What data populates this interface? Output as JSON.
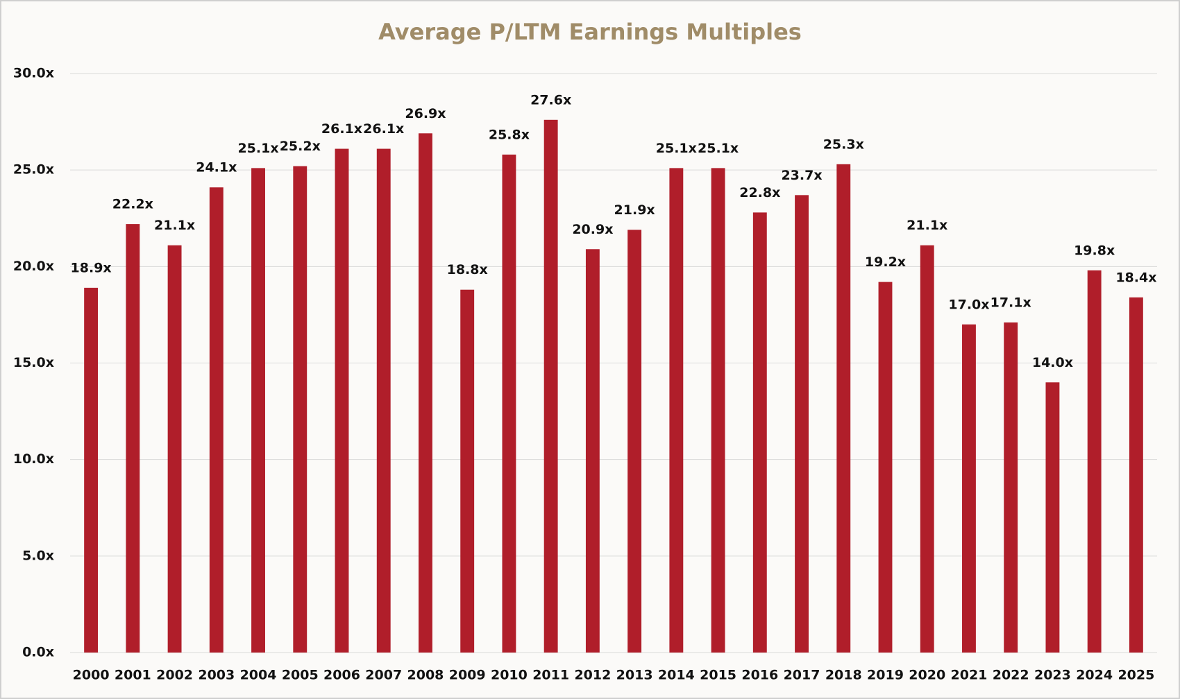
{
  "chart_data": {
    "type": "bar",
    "title": "Average P/LTM Earnings Multiples",
    "categories": [
      "2000",
      "2001",
      "2002",
      "2003",
      "2004",
      "2005",
      "2006",
      "2007",
      "2008",
      "2009",
      "2010",
      "2011",
      "2012",
      "2013",
      "2014",
      "2015",
      "2016",
      "2017",
      "2018",
      "2019",
      "2020",
      "2021",
      "2022",
      "2023",
      "2024",
      "2025"
    ],
    "values": [
      18.9,
      22.2,
      21.1,
      24.1,
      25.1,
      25.2,
      26.1,
      26.1,
      26.9,
      18.8,
      25.8,
      27.6,
      20.9,
      21.9,
      25.1,
      25.1,
      22.8,
      23.7,
      25.3,
      19.2,
      21.1,
      17.0,
      17.1,
      14.0,
      19.8,
      18.4
    ],
    "value_labels": [
      "18.9x",
      "22.2x",
      "21.1x",
      "24.1x",
      "25.1x",
      "25.2x",
      "26.1x",
      "26.1x",
      "26.9x",
      "18.8x",
      "25.8x",
      "27.6x",
      "20.9x",
      "21.9x",
      "25.1x",
      "25.1x",
      "22.8x",
      "23.7x",
      "25.3x",
      "19.2x",
      "21.1x",
      "17.0x",
      "17.1x",
      "14.0x",
      "19.8x",
      "18.4x"
    ],
    "color": "#b01e2a",
    "ylim": [
      0,
      30
    ],
    "yticks": [
      {
        "value": 0,
        "label": "0.0x"
      },
      {
        "value": 5,
        "label": "5.0x"
      },
      {
        "value": 10,
        "label": "10.0x"
      },
      {
        "value": 15,
        "label": "15.0x"
      },
      {
        "value": 20,
        "label": "20.0x"
      },
      {
        "value": 25,
        "label": "25.0x"
      },
      {
        "value": 30,
        "label": "30.0x"
      }
    ],
    "grid": true
  }
}
